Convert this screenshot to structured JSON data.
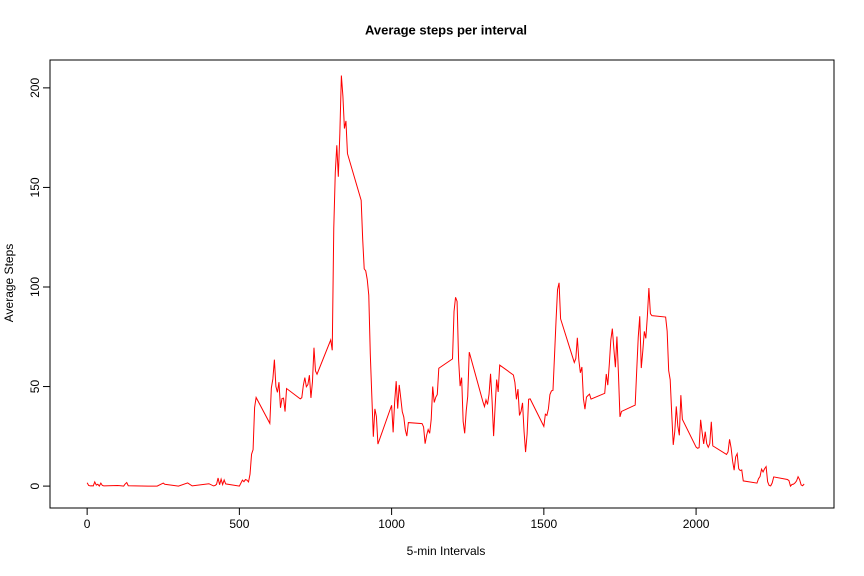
{
  "chart_data": {
    "type": "line",
    "title": "Average steps per interval",
    "x_label": "5-min Intervals",
    "y_label": "Average Steps",
    "x": [
      0,
      5,
      10,
      15,
      20,
      25,
      30,
      35,
      40,
      45,
      50,
      55,
      100,
      110,
      120,
      125,
      130,
      135,
      200,
      230,
      250,
      255,
      300,
      330,
      345,
      400,
      415,
      420,
      425,
      430,
      435,
      440,
      445,
      450,
      455,
      500,
      510,
      515,
      520,
      525,
      530,
      535,
      540,
      545,
      550,
      555,
      600,
      605,
      610,
      615,
      620,
      625,
      630,
      635,
      640,
      645,
      650,
      655,
      700,
      705,
      710,
      715,
      720,
      725,
      730,
      735,
      740,
      745,
      750,
      755,
      800,
      805,
      810,
      815,
      820,
      825,
      830,
      835,
      840,
      845,
      850,
      855,
      900,
      905,
      910,
      915,
      920,
      925,
      930,
      935,
      940,
      945,
      950,
      955,
      1000,
      1005,
      1010,
      1015,
      1020,
      1025,
      1030,
      1035,
      1040,
      1045,
      1050,
      1055,
      1100,
      1105,
      1110,
      1115,
      1120,
      1125,
      1130,
      1135,
      1140,
      1145,
      1150,
      1155,
      1200,
      1205,
      1210,
      1215,
      1220,
      1225,
      1230,
      1235,
      1240,
      1245,
      1250,
      1255,
      1300,
      1305,
      1310,
      1315,
      1320,
      1325,
      1330,
      1335,
      1340,
      1345,
      1350,
      1355,
      1400,
      1405,
      1410,
      1415,
      1420,
      1425,
      1430,
      1435,
      1440,
      1445,
      1450,
      1455,
      1500,
      1505,
      1510,
      1515,
      1520,
      1525,
      1530,
      1535,
      1540,
      1545,
      1550,
      1555,
      1600,
      1605,
      1610,
      1615,
      1620,
      1625,
      1630,
      1635,
      1640,
      1645,
      1650,
      1655,
      1700,
      1705,
      1710,
      1715,
      1720,
      1725,
      1730,
      1735,
      1740,
      1745,
      1750,
      1755,
      1800,
      1805,
      1810,
      1815,
      1820,
      1825,
      1830,
      1835,
      1840,
      1845,
      1850,
      1855,
      1900,
      1905,
      1910,
      1915,
      1920,
      1925,
      1930,
      1935,
      1940,
      1945,
      1950,
      1955,
      2000,
      2005,
      2010,
      2015,
      2020,
      2025,
      2030,
      2035,
      2040,
      2045,
      2050,
      2055,
      2100,
      2105,
      2110,
      2115,
      2120,
      2125,
      2130,
      2135,
      2140,
      2145,
      2150,
      2155,
      2200,
      2205,
      2210,
      2215,
      2220,
      2225,
      2230,
      2235,
      2240,
      2245,
      2250,
      2255,
      2300,
      2305,
      2310,
      2315,
      2320,
      2325,
      2330,
      2335,
      2340,
      2345,
      2350,
      2355
    ],
    "series": [
      {
        "color": "#ff0000",
        "values": [
          1.7,
          0.3,
          0.1,
          0.2,
          0.1,
          2.1,
          0.5,
          0.9,
          0,
          1.5,
          0.3,
          0.1,
          0.3,
          0.2,
          0,
          1.1,
          1.8,
          0.2,
          0,
          0,
          1.5,
          0.9,
          0,
          1.6,
          0.1,
          1.2,
          0.1,
          0.3,
          0.9,
          4.1,
          0.7,
          3.5,
          0.8,
          3.1,
          1.1,
          0,
          3,
          2.2,
          3.3,
          3,
          2.1,
          6,
          16,
          18.3,
          39.5,
          44.5,
          31.5,
          49.3,
          53.8,
          63.5,
          50,
          47.1,
          52.2,
          39.3,
          44,
          44.2,
          37.4,
          49,
          43.8,
          44.4,
          50.5,
          54.5,
          49.9,
          51,
          55.7,
          44.3,
          52.3,
          69.5,
          57.8,
          56.2,
          73.4,
          68.2,
          129.4,
          157.5,
          171.2,
          155.4,
          177.3,
          206.2,
          195.9,
          179.6,
          183.4,
          167,
          143.5,
          124,
          109.1,
          108.1,
          103.7,
          95.9,
          66.2,
          45.2,
          24.8,
          38.8,
          35,
          21.1,
          40.6,
          27,
          42.4,
          52.7,
          38.9,
          50.8,
          44.3,
          37.4,
          34.7,
          28.3,
          25.1,
          31.9,
          31.4,
          29.7,
          21.3,
          25.5,
          28.4,
          26.5,
          33.4,
          50,
          42,
          44.6,
          46,
          59.2,
          63.9,
          87.7,
          94.8,
          92.8,
          63.4,
          50.2,
          54.5,
          32.4,
          26.5,
          37.7,
          45.1,
          67.3,
          42.3,
          39.9,
          43.3,
          41,
          46.2,
          56.4,
          42.8,
          25.1,
          40,
          53.5,
          47.3,
          60.8,
          55.8,
          52,
          43.6,
          48.7,
          35.5,
          37.5,
          41.8,
          27.5,
          17.1,
          26.1,
          43.6,
          43.8,
          30,
          36.1,
          35.5,
          38.8,
          46,
          47.8,
          48.1,
          65.3,
          82.9,
          98.7,
          102.1,
          84,
          62.1,
          64.1,
          74.5,
          63.2,
          56.9,
          59.8,
          43.9,
          38.6,
          44.7,
          45.5,
          46.2,
          43.7,
          46.6,
          56.3,
          50.7,
          61.2,
          73.4,
          79.1,
          68.9,
          59.7,
          75.1,
          56.5,
          34.8,
          37.5,
          40.7,
          58,
          74.7,
          85.3,
          59.3,
          67.8,
          77.7,
          74.2,
          85.3,
          99.5,
          86.6,
          85.6,
          84.9,
          77.8,
          58,
          53.4,
          36.3,
          20.7,
          27.4,
          40,
          30.2,
          25.5,
          45.7,
          33.5,
          19.6,
          19,
          19.3,
          33.3,
          26.8,
          21.2,
          27.3,
          21.3,
          19.5,
          21.3,
          32.3,
          20.2,
          15.9,
          17.2,
          23.5,
          19.2,
          12.5,
          8,
          14.7,
          16.3,
          8.7,
          7.8,
          8.1,
          2.6,
          1.5,
          3.7,
          4.8,
          8.5,
          7.1,
          8.7,
          9.8,
          2.2,
          0.3,
          0.1,
          1.6,
          4.6,
          3.3,
          2.8,
          0,
          0.8,
          1,
          1.6,
          2.6,
          4.7,
          3.3,
          0.6,
          0.2,
          1.1
        ]
      }
    ],
    "xlim": [
      -122,
      2453
    ],
    "ylim": [
      -11,
      214
    ],
    "xticks": [
      0,
      500,
      1000,
      1500,
      2000
    ],
    "yticks": [
      0,
      50,
      100,
      150,
      200
    ]
  }
}
